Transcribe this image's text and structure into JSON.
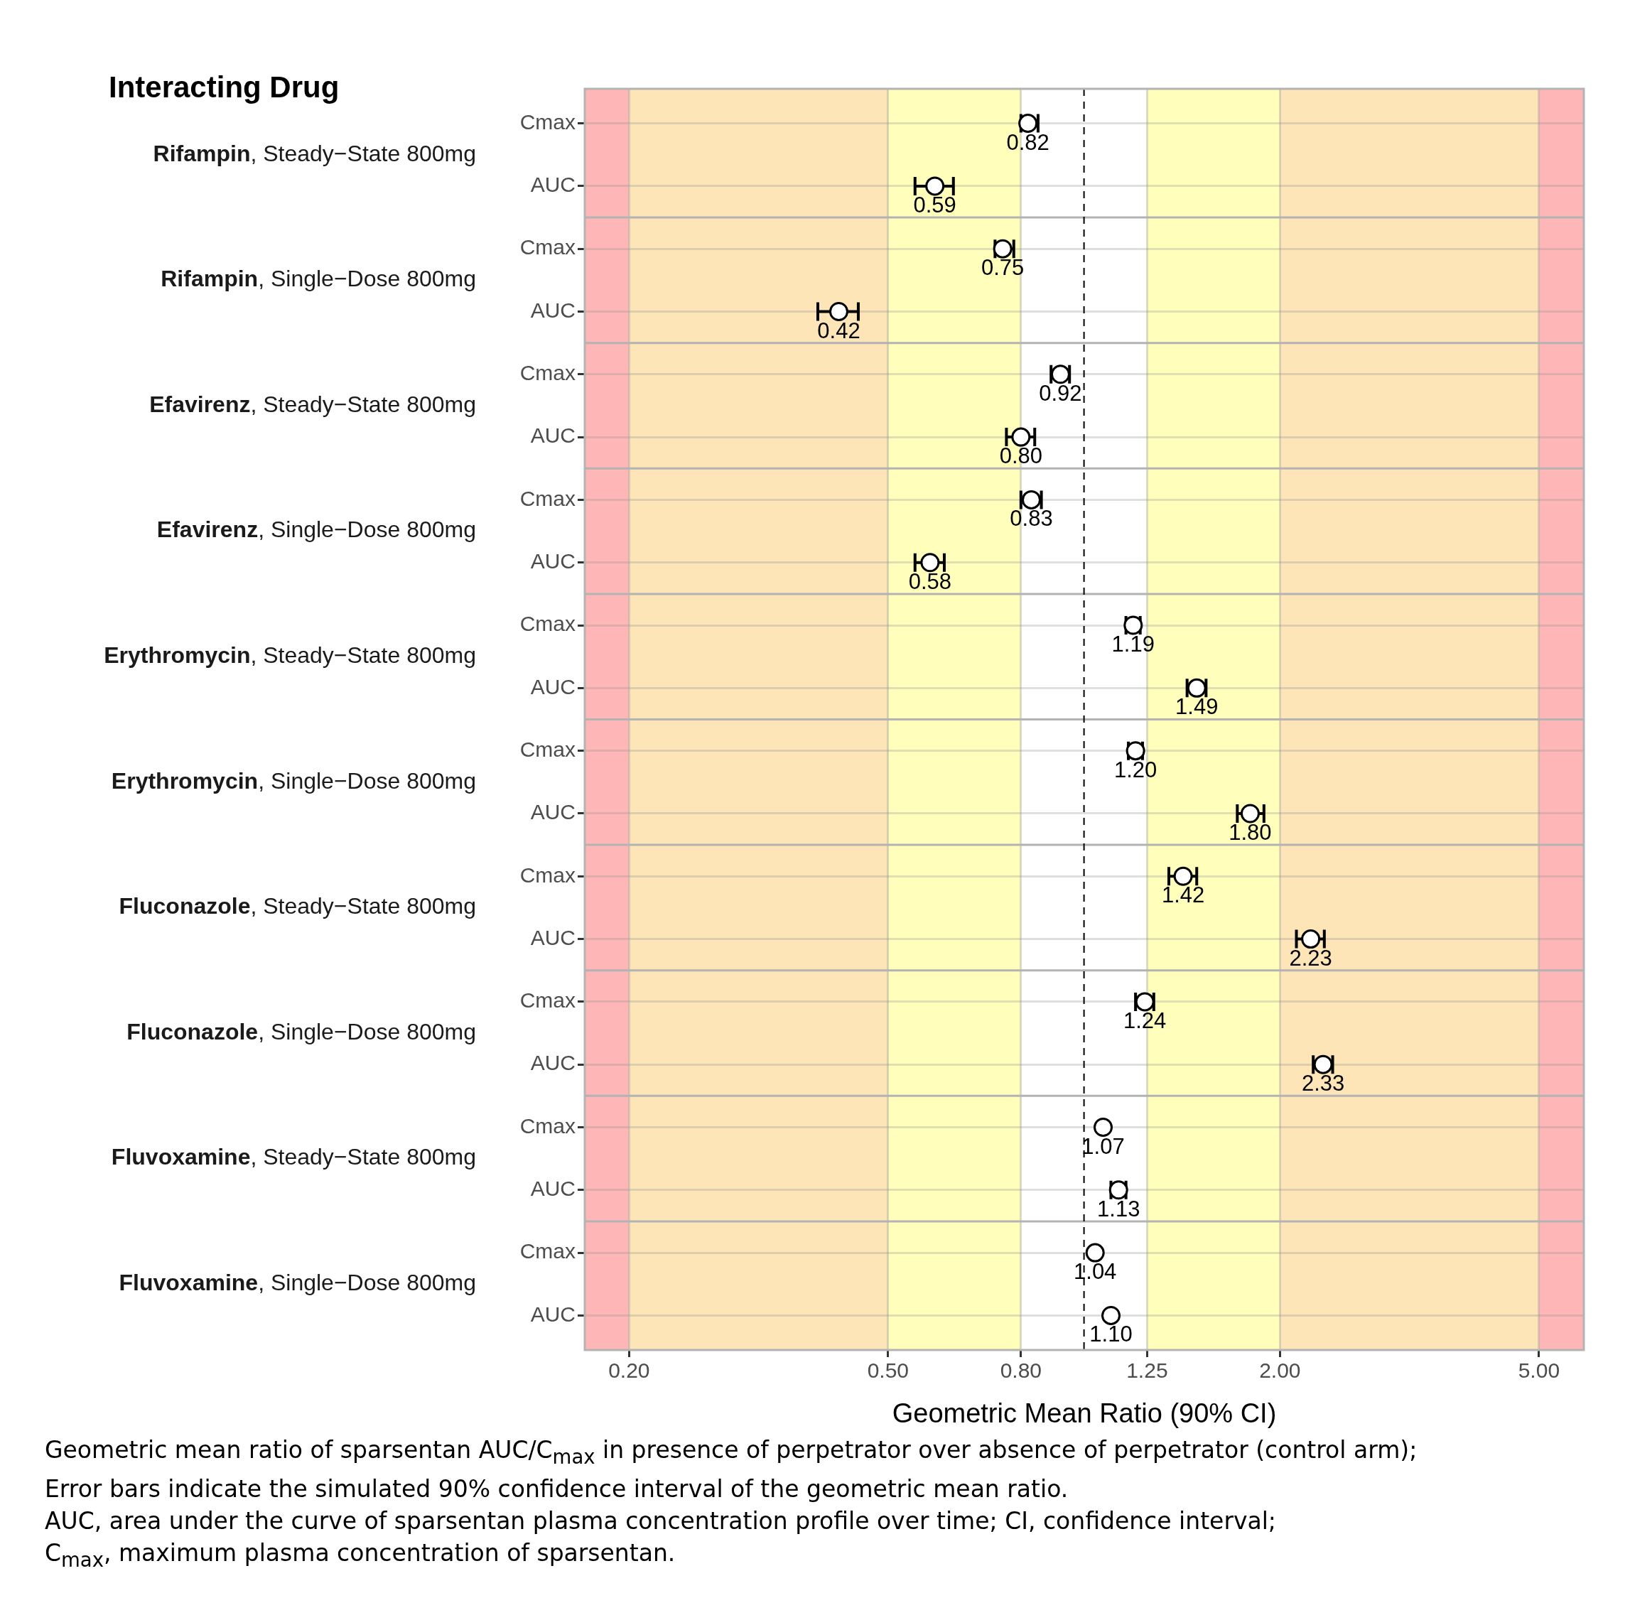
{
  "chart_data": {
    "type": "scatter",
    "orientation": "horizontal",
    "xlabel": "Geometric Mean Ratio (90% CI)",
    "categories": [
      "Cmax",
      "AUC",
      "Cmax",
      "AUC",
      "Cmax",
      "AUC",
      "Cmax",
      "AUC",
      "Cmax",
      "AUC",
      "Cmax",
      "AUC",
      "Cmax",
      "AUC",
      "Cmax",
      "AUC",
      "Cmax",
      "AUC",
      "Cmax",
      "AUC"
    ],
    "values": [
      0.82,
      0.59,
      0.75,
      0.42,
      0.92,
      0.8,
      0.83,
      0.58,
      1.19,
      1.49,
      1.2,
      1.8,
      1.42,
      2.23,
      1.24,
      2.33,
      1.07,
      1.13,
      1.04,
      1.1
    ],
    "errors": [
      [
        0.8,
        0.85
      ],
      [
        0.55,
        0.63
      ],
      [
        0.73,
        0.78
      ],
      [
        0.39,
        0.45
      ],
      [
        0.89,
        0.95
      ],
      [
        0.76,
        0.84
      ],
      [
        0.8,
        0.86
      ],
      [
        0.55,
        0.61
      ],
      [
        1.16,
        1.22
      ],
      [
        1.44,
        1.54
      ],
      [
        1.17,
        1.23
      ],
      [
        1.72,
        1.89
      ],
      [
        1.35,
        1.49
      ],
      [
        2.12,
        2.34
      ],
      [
        1.2,
        1.28
      ],
      [
        2.25,
        2.41
      ],
      null,
      [
        1.1,
        1.16
      ],
      null,
      null
    ],
    "value_labels": [
      "0.82",
      "0.59",
      "0.75",
      "0.42",
      "0.92",
      "0.80",
      "0.83",
      "0.58",
      "1.19",
      "1.49",
      "1.20",
      "1.80",
      "1.42",
      "2.23",
      "1.24",
      "2.33",
      "1.07",
      "1.13",
      "1.04",
      "1.10"
    ],
    "color": "#000000",
    "marker": "circle",
    "log": "x",
    "grid": true,
    "xlim": [
      0.171,
      5.86
    ],
    "xticks": [
      {
        "value": 0.2,
        "label": "0.20"
      },
      {
        "value": 0.5,
        "label": "0.50"
      },
      {
        "value": 0.8,
        "label": "0.80"
      },
      {
        "value": 1.25,
        "label": "1.25"
      },
      {
        "value": 2,
        "label": "2.00"
      },
      {
        "value": 5,
        "label": "5.00"
      }
    ],
    "ref_lines": [
      {
        "axis": "x",
        "value": 1,
        "line_style": "dashed",
        "color": "#000000"
      }
    ],
    "bands": [
      {
        "axis": "x",
        "from": 0.171,
        "to": 0.2,
        "color": "#ffb6b6"
      },
      {
        "axis": "x",
        "from": 0.2,
        "to": 0.5,
        "color": "#fde5b8"
      },
      {
        "axis": "x",
        "from": 0.5,
        "to": 0.8,
        "color": "#ffffbb"
      },
      {
        "axis": "x",
        "from": 1.25,
        "to": 2,
        "color": "#ffffbb"
      },
      {
        "axis": "x",
        "from": 2,
        "to": 5,
        "color": "#fde5b8"
      },
      {
        "axis": "x",
        "from": 5,
        "to": 5.86,
        "color": "#ffb6b6"
      }
    ],
    "annotations": [
      "Interacting Drug",
      "Rifampin, Steady−State 800mg",
      "Rifampin, Single−Dose 800mg",
      "Efavirenz, Steady−State 800mg",
      "Efavirenz, Single−Dose 800mg",
      "Erythromycin, Steady−State 800mg",
      "Erythromycin, Single−Dose 800mg",
      "Fluconazole, Steady−State 800mg",
      "Fluconazole, Single−Dose 800mg",
      "Fluvoxamine, Steady−State 800mg",
      "Fluvoxamine, Single−Dose 800mg",
      "Geometric mean ratio of sparsentan AUC/C$_{max}$ in presence of perpetrator over absence of perpetrator (control arm);",
      "Error bars indicate the simulated 90% confidence interval of the geometric mean ratio.",
      "AUC, area under the curve of sparsentan plasma concentration profile over time; CI, confidence interval;",
      "C$_{max}$, maximum plasma concentration of sparsentan."
    ]
  }
}
